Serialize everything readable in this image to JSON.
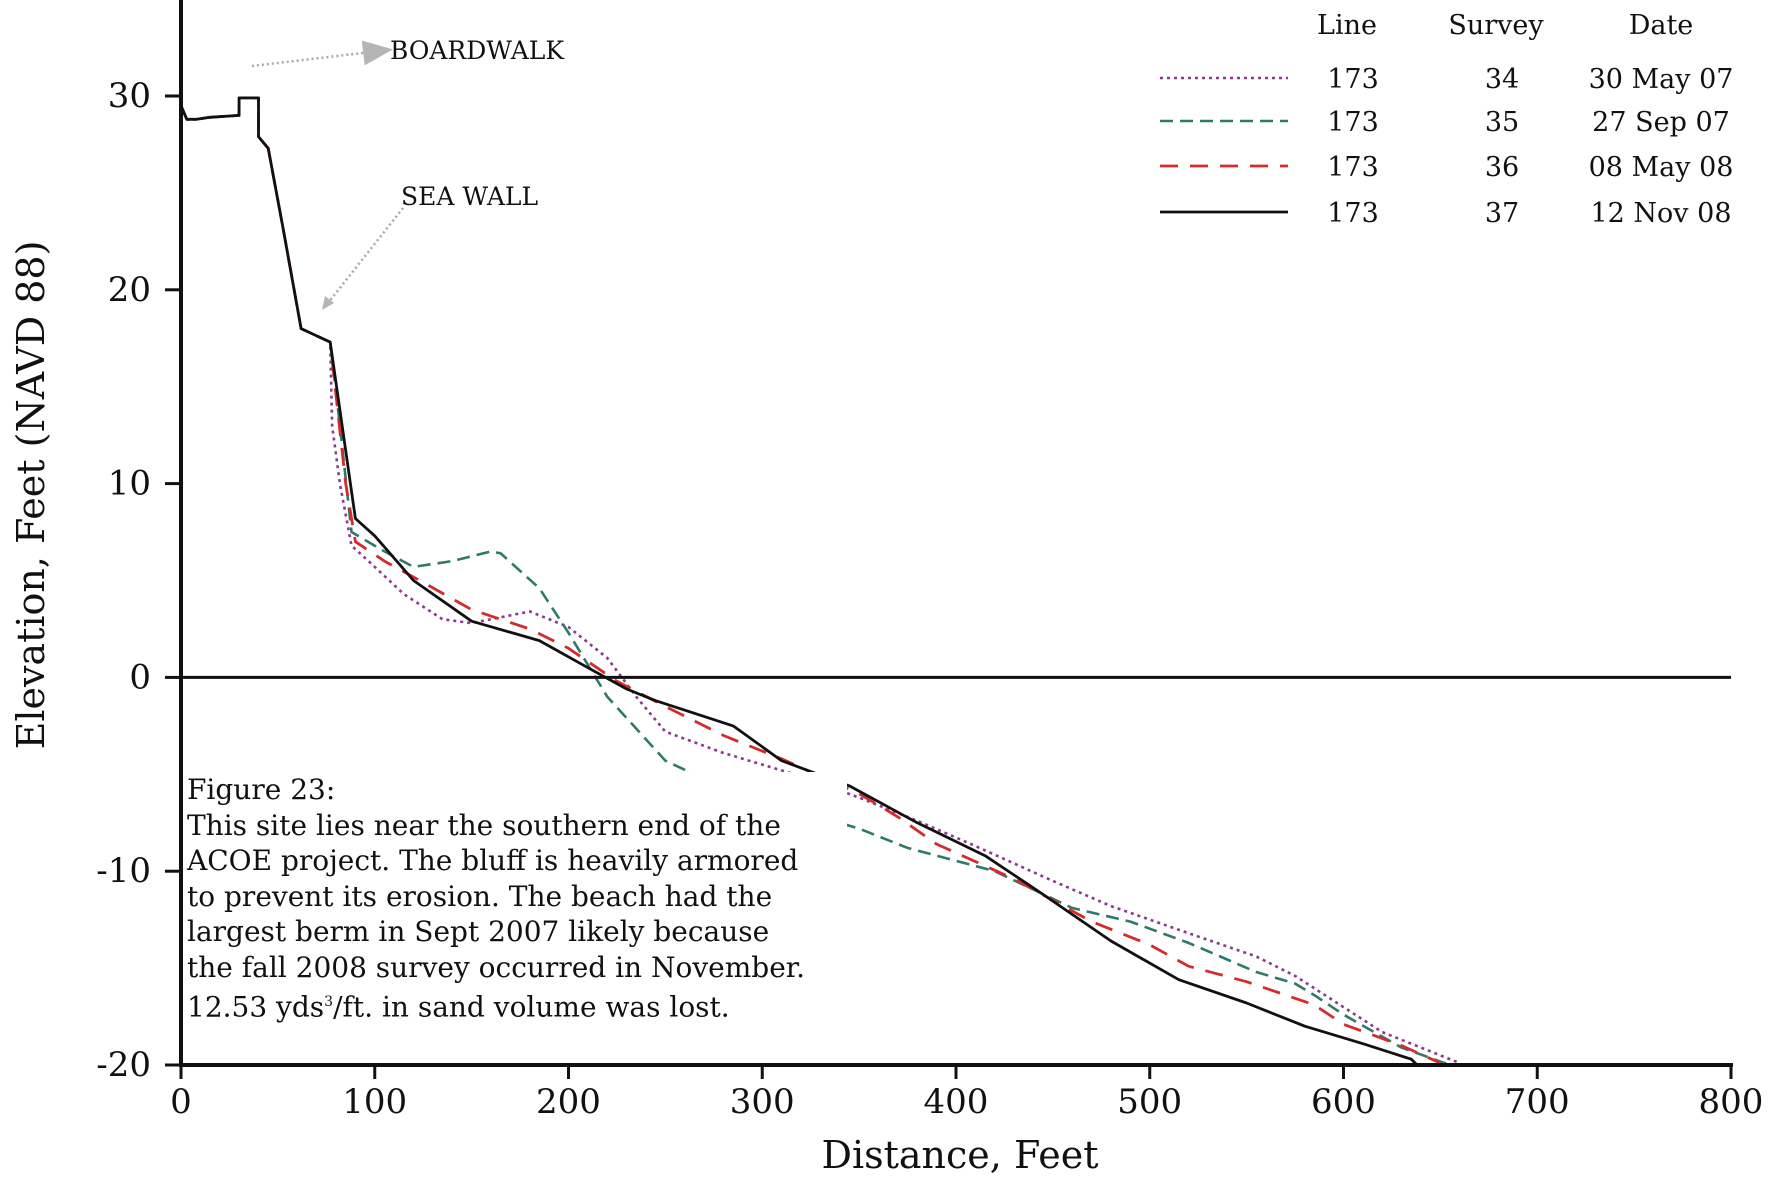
{
  "chart_data": {
    "type": "line",
    "xlabel": "Distance, Feet",
    "ylabel": "Elevation, Feet (NAVD 88)",
    "xlim": [
      0,
      800
    ],
    "ylim": [
      -20,
      35
    ],
    "x_ticks": [
      0,
      100,
      200,
      300,
      400,
      500,
      600,
      700,
      800
    ],
    "y_ticks": [
      30,
      20,
      10,
      0,
      -10,
      -20
    ],
    "grid": false,
    "legend": {
      "placement": "top-right",
      "headers": [
        "Line",
        "Survey",
        "Date"
      ]
    },
    "annotations": [
      "BOARDWALK",
      "SEA WALL"
    ],
    "series": [
      {
        "line": "173",
        "survey": "34",
        "date": "30 May 07",
        "style": "dotted",
        "color": "#8b3a8f",
        "points": [
          [
            0,
            29.5
          ],
          [
            3,
            28.8
          ],
          [
            8,
            28.8
          ],
          [
            15,
            28.9
          ],
          [
            30,
            29.0
          ],
          [
            30,
            29.9
          ],
          [
            40,
            29.9
          ],
          [
            40,
            27.9
          ],
          [
            45,
            27.3
          ],
          [
            53,
            23
          ],
          [
            62,
            18
          ],
          [
            77,
            17.3
          ],
          [
            78,
            13
          ],
          [
            82,
            10
          ],
          [
            88,
            6.8
          ],
          [
            100,
            5.7
          ],
          [
            115,
            4.3
          ],
          [
            135,
            3.0
          ],
          [
            150,
            2.8
          ],
          [
            180,
            3.4
          ],
          [
            200,
            2.6
          ],
          [
            220,
            1.0
          ],
          [
            235,
            -1.0
          ],
          [
            250,
            -2.8
          ],
          [
            280,
            -3.9
          ],
          [
            320,
            -5.1
          ],
          [
            350,
            -6.2
          ],
          [
            380,
            -7.4
          ],
          [
            410,
            -8.7
          ],
          [
            450,
            -10.5
          ],
          [
            480,
            -11.8
          ],
          [
            520,
            -13.2
          ],
          [
            555,
            -14.4
          ],
          [
            575,
            -15.4
          ],
          [
            620,
            -18.3
          ],
          [
            640,
            -19.1
          ],
          [
            660,
            -19.9
          ]
        ]
      },
      {
        "line": "173",
        "survey": "35",
        "date": "27 Sep 07",
        "style": "dashed",
        "color": "#2e7a6a",
        "points": [
          [
            0,
            29.5
          ],
          [
            3,
            28.8
          ],
          [
            8,
            28.8
          ],
          [
            15,
            28.9
          ],
          [
            30,
            29.0
          ],
          [
            30,
            29.9
          ],
          [
            40,
            29.9
          ],
          [
            40,
            27.9
          ],
          [
            45,
            27.3
          ],
          [
            53,
            23
          ],
          [
            62,
            18
          ],
          [
            77,
            17.3
          ],
          [
            82,
            13
          ],
          [
            88,
            7.5
          ],
          [
            105,
            6.5
          ],
          [
            120,
            5.7
          ],
          [
            140,
            6.0
          ],
          [
            160,
            6.5
          ],
          [
            165,
            6.4
          ],
          [
            185,
            4.6
          ],
          [
            200,
            2.3
          ],
          [
            220,
            -1.0
          ],
          [
            250,
            -4.3
          ],
          [
            280,
            -5.7
          ],
          [
            320,
            -6.9
          ],
          [
            350,
            -7.8
          ],
          [
            375,
            -8.8
          ],
          [
            420,
            -10.0
          ],
          [
            460,
            -11.9
          ],
          [
            490,
            -12.6
          ],
          [
            520,
            -13.7
          ],
          [
            555,
            -15.2
          ],
          [
            575,
            -15.8
          ],
          [
            585,
            -16.4
          ],
          [
            600,
            -17.4
          ],
          [
            630,
            -19.1
          ],
          [
            655,
            -20.0
          ]
        ]
      },
      {
        "line": "173",
        "survey": "36",
        "date": "08 May 08",
        "style": "dashed-long",
        "color": "#d42b2b",
        "points": [
          [
            0,
            29.5
          ],
          [
            3,
            28.8
          ],
          [
            8,
            28.8
          ],
          [
            15,
            28.9
          ],
          [
            30,
            29.0
          ],
          [
            30,
            29.9
          ],
          [
            40,
            29.9
          ],
          [
            40,
            27.9
          ],
          [
            45,
            27.3
          ],
          [
            53,
            23
          ],
          [
            62,
            18
          ],
          [
            77,
            17.3
          ],
          [
            85,
            10
          ],
          [
            90,
            7.0
          ],
          [
            105,
            6.0
          ],
          [
            125,
            4.9
          ],
          [
            150,
            3.5
          ],
          [
            180,
            2.5
          ],
          [
            200,
            1.5
          ],
          [
            225,
            -0.2
          ],
          [
            250,
            -1.5
          ],
          [
            280,
            -3.0
          ],
          [
            310,
            -4.2
          ],
          [
            350,
            -6.0
          ],
          [
            370,
            -7.2
          ],
          [
            390,
            -8.6
          ],
          [
            430,
            -10.4
          ],
          [
            470,
            -12.6
          ],
          [
            500,
            -13.8
          ],
          [
            520,
            -14.9
          ],
          [
            550,
            -15.7
          ],
          [
            585,
            -16.9
          ],
          [
            600,
            -17.9
          ],
          [
            630,
            -19.0
          ],
          [
            650,
            -19.9
          ]
        ]
      },
      {
        "line": "173",
        "survey": "37",
        "date": "12 Nov 08",
        "style": "solid",
        "color": "#111111",
        "points": [
          [
            0,
            29.5
          ],
          [
            3,
            28.8
          ],
          [
            8,
            28.8
          ],
          [
            15,
            28.9
          ],
          [
            30,
            29.0
          ],
          [
            30,
            29.9
          ],
          [
            40,
            29.9
          ],
          [
            40,
            27.9
          ],
          [
            45,
            27.3
          ],
          [
            53,
            23
          ],
          [
            62,
            18
          ],
          [
            77,
            17.3
          ],
          [
            90,
            8.2
          ],
          [
            100,
            7.3
          ],
          [
            120,
            5.0
          ],
          [
            150,
            2.9
          ],
          [
            185,
            1.9
          ],
          [
            210,
            0.5
          ],
          [
            230,
            -0.6
          ],
          [
            245,
            -1.2
          ],
          [
            285,
            -2.5
          ],
          [
            310,
            -4.3
          ],
          [
            345,
            -5.6
          ],
          [
            380,
            -7.5
          ],
          [
            415,
            -9.2
          ],
          [
            445,
            -11.2
          ],
          [
            480,
            -13.6
          ],
          [
            515,
            -15.6
          ],
          [
            550,
            -16.8
          ],
          [
            580,
            -18.0
          ],
          [
            610,
            -18.9
          ],
          [
            635,
            -19.7
          ],
          [
            638,
            -20.0
          ]
        ]
      }
    ]
  },
  "caption": {
    "lines": [
      "Figure 23:",
      "This site lies near the southern end of the",
      "ACOE project.  The bluff is heavily armored",
      "to prevent its erosion.  The beach had the",
      "largest berm in Sept 2007 likely because",
      "the fall 2008 survey occurred in November."
    ],
    "last_line_prefix": "12.53 yds",
    "last_line_sup": "3",
    "last_line_suffix": "/ft. in sand volume was lost."
  }
}
